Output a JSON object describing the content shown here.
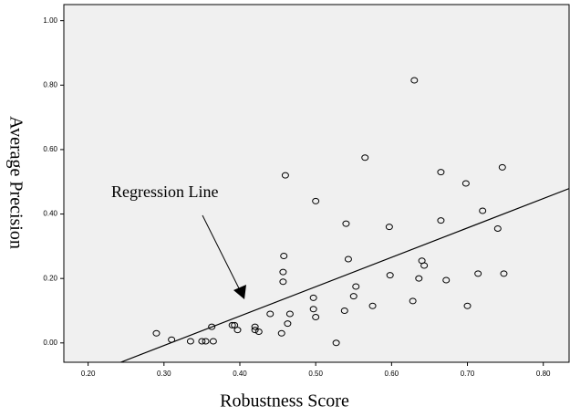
{
  "chart_data": {
    "type": "scatter",
    "x_label": "Robustness Score",
    "y_label": "Average Precision",
    "annotation": "Regression Line",
    "xlim": [
      0.168,
      0.834
    ],
    "ylim": [
      -0.06,
      1.05
    ],
    "xticks": [
      {
        "value": 0.2,
        "label": "0.20"
      },
      {
        "value": 0.3,
        "label": "0.30"
      },
      {
        "value": 0.4,
        "label": "0.40"
      },
      {
        "value": 0.5,
        "label": "0.50"
      },
      {
        "value": 0.6,
        "label": "0.60"
      },
      {
        "value": 0.7,
        "label": "0.70"
      },
      {
        "value": 0.8,
        "label": "0.80"
      }
    ],
    "yticks": [
      {
        "value": 0,
        "label": "0.00"
      },
      {
        "value": 0.2,
        "label": "0.20"
      },
      {
        "value": 0.4,
        "label": "0.40"
      },
      {
        "value": 0.6,
        "label": "0.60"
      },
      {
        "value": 0.8,
        "label": "0.80"
      },
      {
        "value": 1,
        "label": "1.00"
      }
    ],
    "background": "#f0f0f0",
    "color": "#000000",
    "x": [
      0.29,
      0.31,
      0.335,
      0.35,
      0.355,
      0.363,
      0.365,
      0.39,
      0.393,
      0.397,
      0.42,
      0.42,
      0.425,
      0.44,
      0.455,
      0.457,
      0.457,
      0.458,
      0.46,
      0.463,
      0.466,
      0.497,
      0.497,
      0.5,
      0.5,
      0.527,
      0.538,
      0.54,
      0.543,
      0.55,
      0.553,
      0.565,
      0.575,
      0.597,
      0.598,
      0.628,
      0.63,
      0.636,
      0.64,
      0.643,
      0.665,
      0.665,
      0.672,
      0.698,
      0.7,
      0.714,
      0.72,
      0.74,
      0.746,
      0.748
    ],
    "values": [
      0.03,
      0.01,
      0.005,
      0.005,
      0.005,
      0.05,
      0.005,
      0.055,
      0.055,
      0.04,
      0.05,
      0.04,
      0.035,
      0.09,
      0.03,
      0.22,
      0.19,
      0.27,
      0.52,
      0.06,
      0.09,
      0.14,
      0.105,
      0.08,
      0.44,
      0.0,
      0.1,
      0.37,
      0.26,
      0.145,
      0.175,
      0.575,
      0.115,
      0.36,
      0.21,
      0.13,
      0.815,
      0.2,
      0.255,
      0.24,
      0.38,
      0.53,
      0.195,
      0.495,
      0.115,
      0.215,
      0.41,
      0.355,
      0.545,
      0.215
    ],
    "regression": {
      "x": [
        0.243,
        0.834
      ],
      "y": [
        -0.06,
        0.479
      ]
    }
  }
}
